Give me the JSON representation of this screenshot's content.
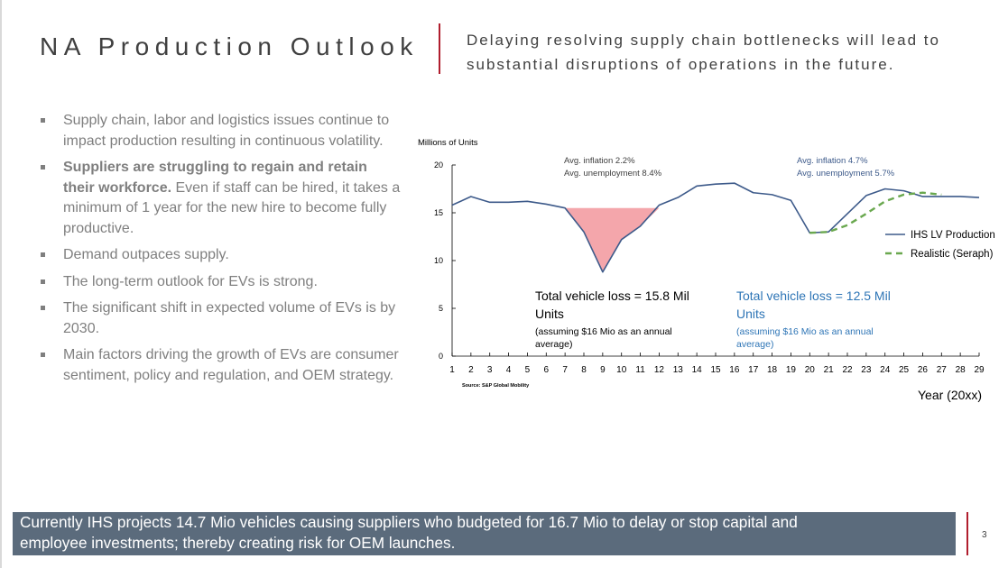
{
  "slide": {
    "title": "NA Production Outlook",
    "subtitle": "Delaying resolving supply chain bottlenecks will lead to substantial disruptions of operations in the future.",
    "page_number": "3",
    "accent_color": "#b01e2e",
    "footer_color": "#5b6b7c"
  },
  "bullets": [
    {
      "text": "Supply chain, labor and logistics issues continue to impact production resulting in continuous volatility."
    },
    {
      "bold": "Suppliers are struggling to regain and retain their workforce.",
      "text": " Even if staff can be hired, it takes a minimum of 1 year for the new hire to become fully productive."
    },
    {
      "text": "Demand outpaces supply."
    },
    {
      "text": "The long-term outlook for EVs is strong."
    },
    {
      "text": "The significant shift in expected volume of EVs is by 2030."
    },
    {
      "text": "Main factors driving the growth of EVs are consumer sentiment, policy and regulation, and OEM strategy."
    }
  ],
  "footer": {
    "line1": "Currently IHS projects 14.7 Mio vehicles causing suppliers who budgeted for 16.7 Mio to delay or stop capital and",
    "line2": "employee investments; thereby creating risk for OEM launches."
  },
  "chart_data": {
    "type": "line",
    "ylabel": "Millions of Units",
    "xlabel": "Year (20xx)",
    "source": "Source: S&P Global Mobility",
    "ylim": [
      0,
      20
    ],
    "yticks": [
      0,
      5,
      10,
      15,
      20
    ],
    "x": [
      1,
      2,
      3,
      4,
      5,
      6,
      7,
      8,
      9,
      10,
      11,
      12,
      13,
      14,
      15,
      16,
      17,
      18,
      19,
      20,
      21,
      22,
      23,
      24,
      25,
      26,
      27,
      28,
      29
    ],
    "series": [
      {
        "name": "IHS LV Production",
        "color": "#3d5a8a",
        "style": "solid",
        "values": [
          15.8,
          16.7,
          16.1,
          16.1,
          16.2,
          15.9,
          15.5,
          13.0,
          8.8,
          12.2,
          13.6,
          15.8,
          16.6,
          17.8,
          18.0,
          18.1,
          17.1,
          16.9,
          16.3,
          12.9,
          13.0,
          14.9,
          16.8,
          17.5,
          17.3,
          16.7,
          16.7,
          16.7,
          16.6
        ]
      },
      {
        "name": "Realistic (Seraph)",
        "color": "#6aa84f",
        "style": "dashed",
        "x": [
          20,
          21,
          22,
          23,
          24,
          25,
          26,
          27
        ],
        "values": [
          12.9,
          13.0,
          13.7,
          14.9,
          16.2,
          16.9,
          17.1,
          16.9
        ]
      }
    ],
    "loss_areas": [
      {
        "x_start": 7,
        "x_end": 12,
        "y_top": 15.5,
        "color": "#f4a6ab"
      }
    ],
    "annotations": [
      {
        "id": "infl1",
        "lines": [
          "Avg. inflation 2.2%",
          "Avg. unemployment 8.4%"
        ],
        "color": "#404040"
      },
      {
        "id": "infl2",
        "lines": [
          "Avg. inflation 4.7%",
          "Avg. unemployment 5.7%"
        ],
        "color": "#3d5a8a"
      },
      {
        "id": "loss1",
        "main": [
          "Total vehicle loss = 15.8 Mil",
          "Units"
        ],
        "note": [
          "(assuming $16 Mio as an annual",
          "average)"
        ],
        "color": "#000000"
      },
      {
        "id": "loss2",
        "main": [
          "Total vehicle loss = 12.5 Mil",
          "Units"
        ],
        "note": [
          "(assuming $16 Mio as an annual",
          "average)"
        ],
        "color": "#2e75b6"
      }
    ]
  }
}
